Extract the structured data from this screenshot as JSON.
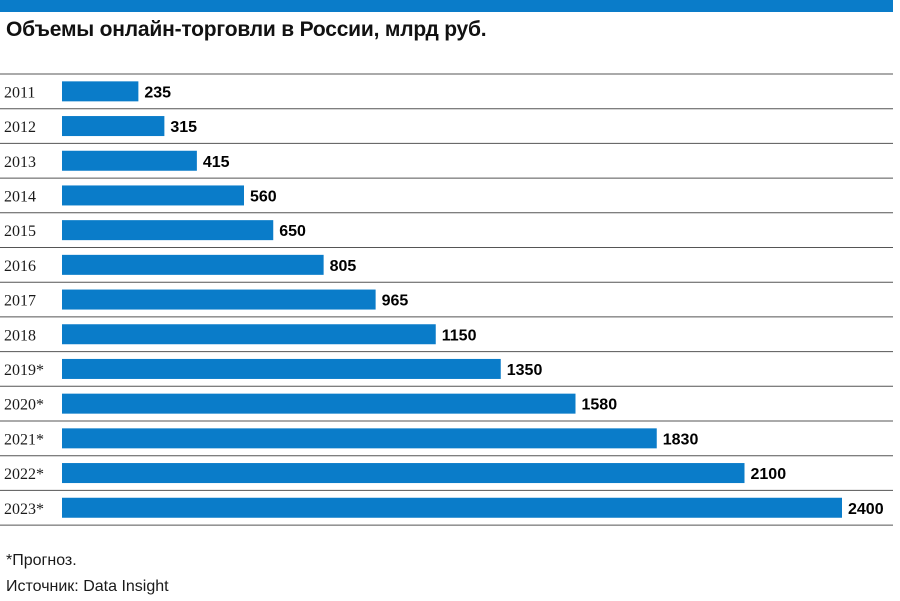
{
  "colors": {
    "accent": "#0a7cc9",
    "bar": "#0a7cc9",
    "row_line": "#555555",
    "text": "#111111"
  },
  "chart_data": {
    "type": "bar",
    "orientation": "horizontal",
    "title": "Объемы онлайн-торговли в России, млрд руб.",
    "categories": [
      "2011",
      "2012",
      "2013",
      "2014",
      "2015",
      "2016",
      "2017",
      "2018",
      "2019*",
      "2020*",
      "2021*",
      "2022*",
      "2023*"
    ],
    "values": [
      235,
      315,
      415,
      560,
      650,
      805,
      965,
      1150,
      1350,
      1580,
      1830,
      2100,
      2400
    ],
    "value_labels": [
      "235",
      "315",
      "415",
      "560",
      "650",
      "805",
      "965",
      "1150",
      "1350",
      "1580",
      "1830",
      "2100",
      "2400"
    ],
    "xlim": [
      0,
      2400
    ],
    "grid": false,
    "legend": "none"
  },
  "footnotes": {
    "forecast": "*Прогноз.",
    "source": "Источник: Data Insight"
  }
}
